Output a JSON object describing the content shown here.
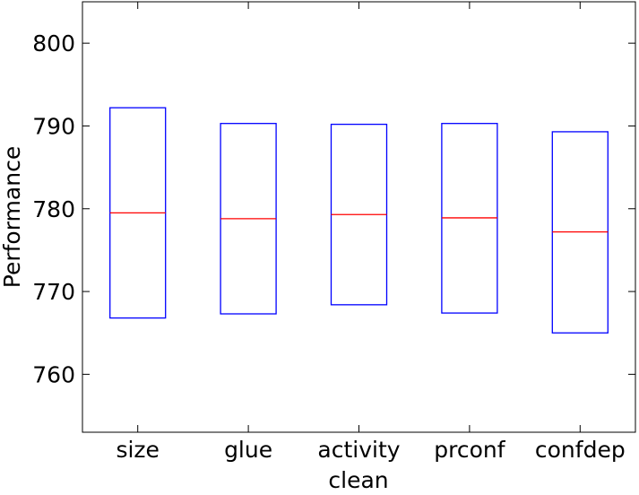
{
  "chart_data": {
    "type": "box",
    "xlabel": "clean",
    "ylabel": "Performance",
    "categories": [
      "size",
      "glue",
      "activity",
      "prconf",
      "confdep"
    ],
    "boxes": [
      {
        "q1": 766.8,
        "median": 779.5,
        "q3": 792.2
      },
      {
        "q1": 767.3,
        "median": 778.8,
        "q3": 790.3
      },
      {
        "q1": 768.4,
        "median": 779.3,
        "q3": 790.2
      },
      {
        "q1": 767.4,
        "median": 778.9,
        "q3": 790.3
      },
      {
        "q1": 765.0,
        "median": 777.2,
        "q3": 789.3
      }
    ],
    "ylim": [
      753,
      805
    ],
    "yticks": [
      760,
      770,
      780,
      790,
      800
    ],
    "box_color": "#0000ff",
    "median_color": "#ff0000",
    "grid": false,
    "legend": false
  }
}
